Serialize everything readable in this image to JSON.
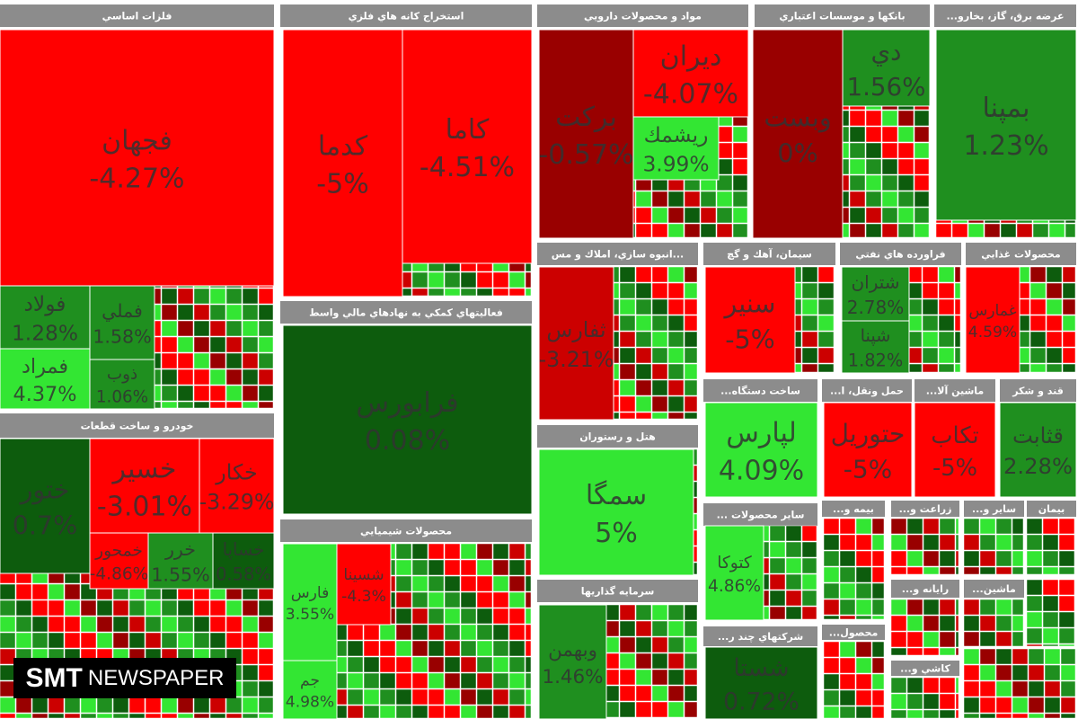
{
  "logo": {
    "brand": "SMT",
    "word": "NEWSPAPER"
  },
  "sectors": [
    {
      "title": "فلزات اساسي",
      "tiles": [
        {
          "name": "فجهان",
          "change": "-4.27%"
        },
        {
          "name": "فولاد",
          "change": "1.28%"
        },
        {
          "name": "فملي",
          "change": "1.58%"
        },
        {
          "name": "فمراد",
          "change": "4.37%"
        },
        {
          "name": "ذوب",
          "change": "1.06%"
        }
      ]
    },
    {
      "title": "استخراج كانه هاي فلزي",
      "tiles": [
        {
          "name": "كدما",
          "change": "-5%"
        },
        {
          "name": "كاما",
          "change": "-4.51%"
        }
      ]
    },
    {
      "title": "مواد و محصولات دارويي",
      "tiles": [
        {
          "name": "بركت",
          "change": "-0.57%"
        },
        {
          "name": "ديران",
          "change": "-4.07%"
        },
        {
          "name": "ريشمك",
          "change": "3.99%"
        }
      ]
    },
    {
      "title": "بانكها و موسسات اعتباري",
      "tiles": [
        {
          "name": "وبست",
          "change": "0%"
        },
        {
          "name": "دي",
          "change": "1.56%"
        }
      ]
    },
    {
      "title": "...عرضه برق، گاز، بخارو",
      "tiles": [
        {
          "name": "بمپنا",
          "change": "1.23%"
        }
      ]
    },
    {
      "title": "فعاليتهاي كمكي به نهادهاي مالي واسط",
      "tiles": [
        {
          "name": "فرابورس",
          "change": "0.08%"
        }
      ]
    },
    {
      "title": "خودرو و ساخت قطعات",
      "tiles": [
        {
          "name": "ختور",
          "change": "0.7%"
        },
        {
          "name": "خسير",
          "change": "-3.01%"
        },
        {
          "name": "خكار",
          "change": "-3.29%"
        },
        {
          "name": "خمحور",
          "change": "-4.86%"
        },
        {
          "name": "خرر",
          "change": "1.55%"
        },
        {
          "name": "خساپا",
          "change": "0.58%"
        }
      ]
    },
    {
      "title": "محصولات شيميايي",
      "tiles": [
        {
          "name": "فارس",
          "change": "3.55%"
        },
        {
          "name": "جم",
          "change": "4.98%"
        },
        {
          "name": "شسينا",
          "change": "-4.3%"
        }
      ]
    },
    {
      "title": "انبوه سازي، املاك و مس...",
      "tiles": [
        {
          "name": "ثفارس",
          "change": "-3.21%"
        }
      ]
    },
    {
      "title": "هتل و رستوران",
      "tiles": [
        {
          "name": "سمگا",
          "change": "5%"
        }
      ]
    },
    {
      "title": "سرمايه گذاريها",
      "tiles": [
        {
          "name": "وبهمن",
          "change": "1.46%"
        }
      ]
    },
    {
      "title": "سيمان، آهك و گچ",
      "tiles": [
        {
          "name": "سنير",
          "change": "-5%"
        }
      ]
    },
    {
      "title": "فراورده هاي نفتي",
      "tiles": [
        {
          "name": "شتران",
          "change": "2.78%"
        },
        {
          "name": "شپنا",
          "change": "1.82%"
        }
      ]
    },
    {
      "title": "محصولات غذايي",
      "tiles": [
        {
          "name": "غمارس",
          "change": "4.59%"
        }
      ]
    },
    {
      "title": "...ساخت دستگاه",
      "tiles": [
        {
          "name": "لپارس",
          "change": "4.09%"
        }
      ]
    },
    {
      "title": "...حمل ونقل، ا",
      "tiles": [
        {
          "name": "حتوريل",
          "change": "-5%"
        }
      ]
    },
    {
      "title": "...ماشين آلا",
      "tiles": [
        {
          "name": "تكاب",
          "change": "-5%"
        }
      ]
    },
    {
      "title": "قند و شكر",
      "tiles": [
        {
          "name": "قثابت",
          "change": "2.28%"
        }
      ]
    },
    {
      "title": "... ساير محصولات",
      "tiles": [
        {
          "name": "كتوكا",
          "change": "4.86%"
        }
      ]
    },
    {
      "title": "...شركتهاي چند ر",
      "tiles": [
        {
          "name": "شستا",
          "change": "0.72%"
        }
      ]
    },
    {
      "title": "...بيمه و",
      "tiles": []
    },
    {
      "title": "...زراعت و",
      "tiles": []
    },
    {
      "title": "...ساير و",
      "tiles": []
    },
    {
      "title": "بيمان",
      "tiles": []
    },
    {
      "title": "...رايانه و",
      "tiles": []
    },
    {
      "title": "...ماشين",
      "tiles": []
    },
    {
      "title": "...كاشي و",
      "tiles": []
    },
    {
      "title": "...محصول",
      "tiles": []
    }
  ]
}
